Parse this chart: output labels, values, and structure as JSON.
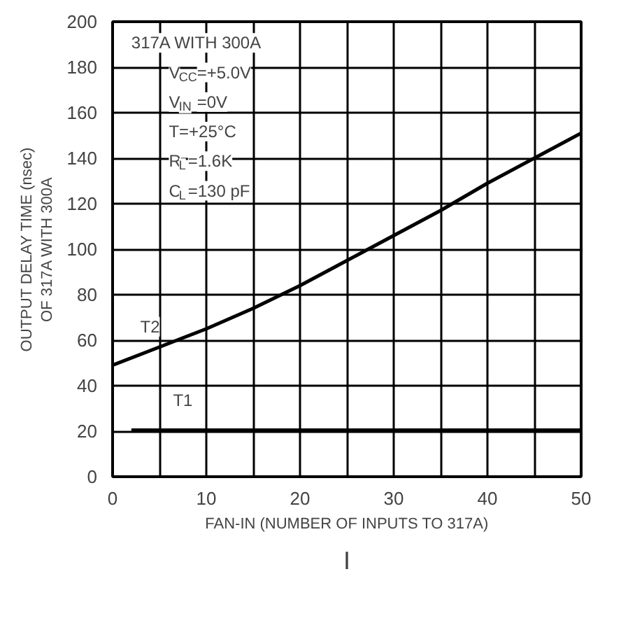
{
  "chart_data": {
    "type": "line",
    "xlabel": "FAN-IN (NUMBER OF INPUTS TO 317A)",
    "ylabel": "OUTPUT DELAY TIME (nsec)\nOF 317A WITH 300A",
    "xlim": [
      0,
      50
    ],
    "ylim": [
      0,
      200
    ],
    "xticks": [
      0,
      10,
      20,
      30,
      40,
      50
    ],
    "yticks": [
      0,
      20,
      40,
      60,
      80,
      100,
      120,
      140,
      160,
      180,
      200
    ],
    "grid": true,
    "series": [
      {
        "name": "T2",
        "color": "#000000",
        "x": [
          0,
          5,
          10,
          15,
          20,
          25,
          30,
          35,
          40,
          45,
          50
        ],
        "values": [
          49,
          57,
          65,
          74,
          84,
          95,
          106,
          117,
          129,
          140,
          151
        ]
      },
      {
        "name": "T1",
        "color": "#000000",
        "x": [
          2,
          10,
          20,
          30,
          40,
          50
        ],
        "values": [
          20.5,
          20.5,
          20.5,
          20.5,
          20.5,
          20.5
        ]
      }
    ],
    "annotations": [
      "317A WITH 300A",
      "V$_{CC}$=+5.0V",
      "V$_{IN}$=0V",
      "T=+25°C",
      "R$_{L}$=1.6K",
      "C$_{L}$=130 pF",
      "I"
    ]
  }
}
